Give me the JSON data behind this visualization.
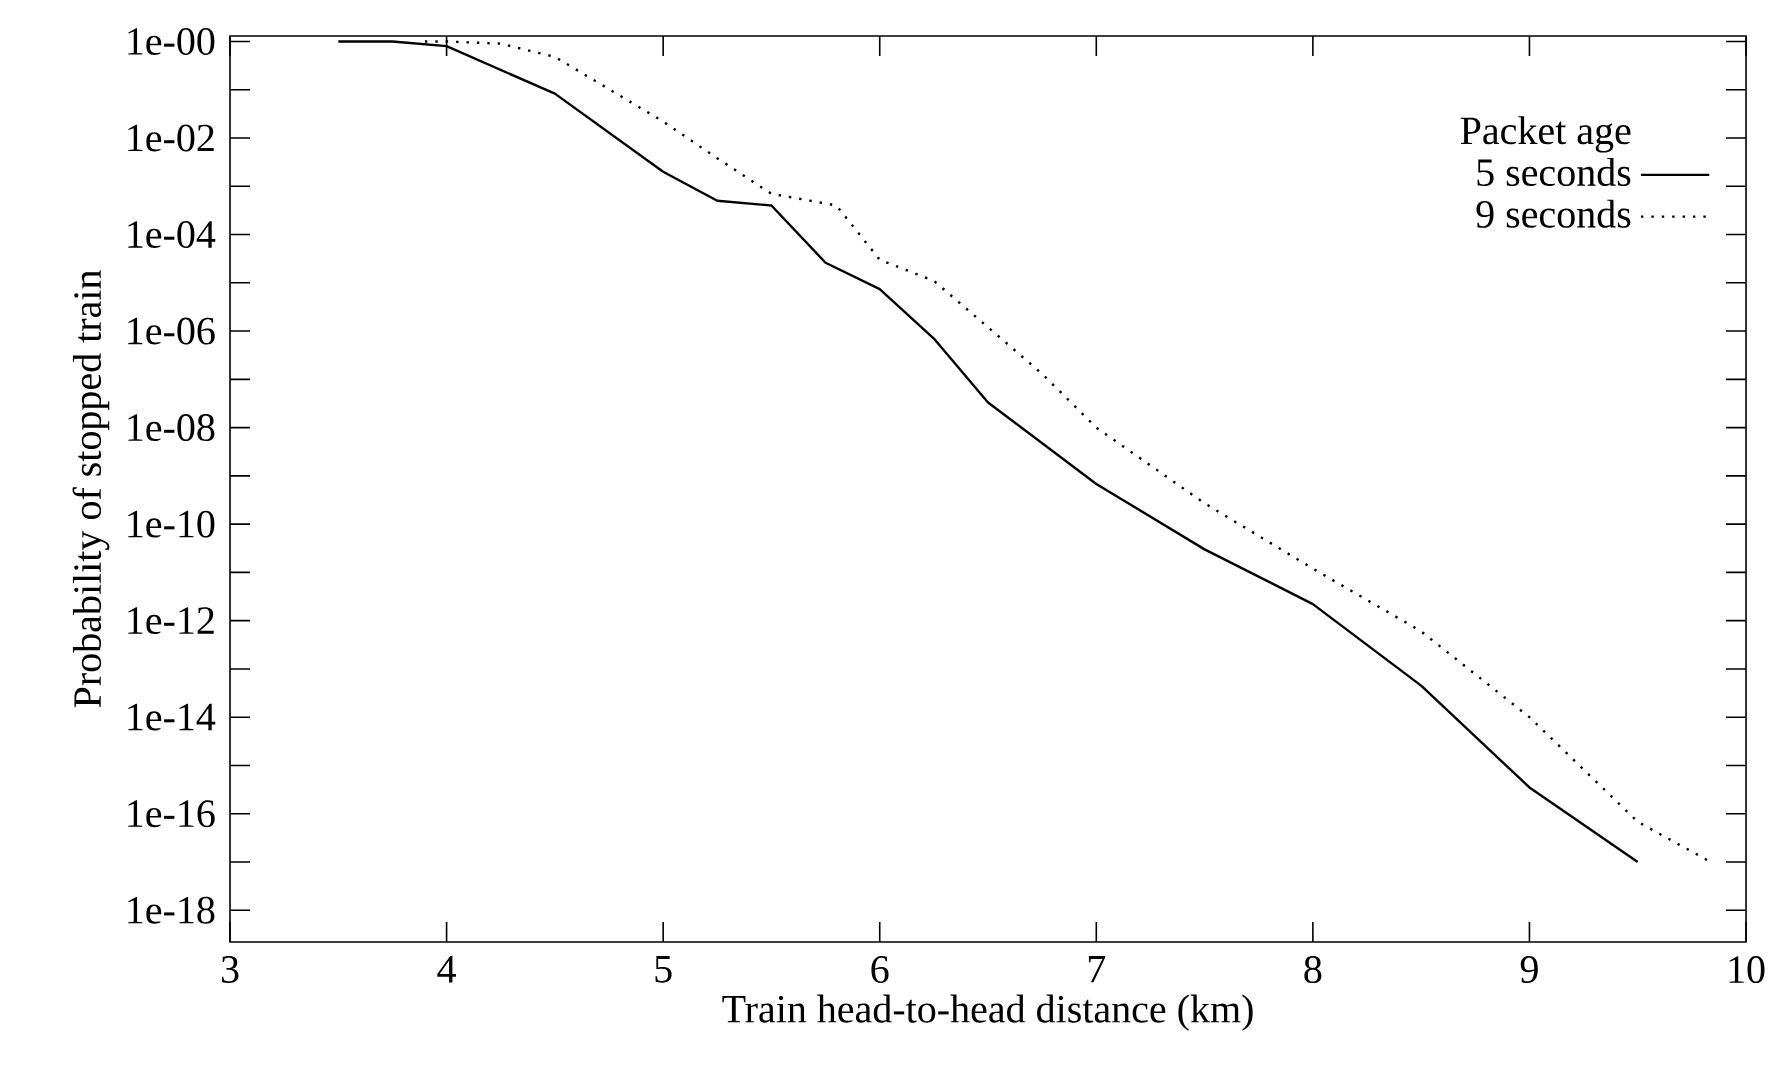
{
  "chart_data": {
    "type": "line",
    "xlabel": "Train head-to-head distance (km)",
    "ylabel": "Probability of stopped train",
    "legend_title": "Packet age",
    "legend": "top right",
    "log": "y",
    "grid": false,
    "marker": "none",
    "xlim": [
      3,
      10
    ],
    "xticks": [
      3,
      4,
      5,
      6,
      7,
      8,
      9,
      10
    ],
    "ylim": [
      2.2e-19,
      1.3
    ],
    "yticks": [
      {
        "value": 1,
        "label": "1e-00"
      },
      {
        "value": 0.1,
        "label": null
      },
      {
        "value": 0.01,
        "label": "1e-02"
      },
      {
        "value": 0.001,
        "label": null
      },
      {
        "value": 0.0001,
        "label": "1e-04"
      },
      {
        "value": 1e-05,
        "label": null
      },
      {
        "value": 1e-06,
        "label": "1e-06"
      },
      {
        "value": 1e-07,
        "label": null
      },
      {
        "value": 1e-08,
        "label": "1e-08"
      },
      {
        "value": 1e-09,
        "label": null
      },
      {
        "value": 1e-10,
        "label": "1e-10"
      },
      {
        "value": 1e-11,
        "label": null
      },
      {
        "value": 1e-12,
        "label": "1e-12"
      },
      {
        "value": 1e-13,
        "label": null
      },
      {
        "value": 1e-14,
        "label": "1e-14"
      },
      {
        "value": 1e-15,
        "label": null
      },
      {
        "value": 1e-16,
        "label": "1e-16"
      },
      {
        "value": 1e-17,
        "label": null
      },
      {
        "value": 1e-18,
        "label": "1e-18"
      }
    ],
    "series": [
      {
        "name": "5 seconds",
        "color": "#000000",
        "line_style": "solid",
        "x": [
          3.5,
          3.75,
          4.0,
          4.5,
          5.0,
          5.25,
          5.5,
          5.75,
          6.0,
          6.25,
          6.5,
          7.0,
          7.5,
          8.0,
          8.5,
          9.0,
          9.5
        ],
        "values": [
          1,
          1,
          0.8,
          0.083,
          0.002,
          0.0005,
          0.0004,
          2.6e-05,
          7.4e-06,
          7e-07,
          3.3e-08,
          6.8e-10,
          3e-11,
          2.2e-12,
          4.5e-14,
          3.5e-16,
          1e-17
        ]
      },
      {
        "name": "9 seconds",
        "color": "#000000",
        "line_style": "dotted",
        "x": [
          3.9,
          4.0,
          4.25,
          4.5,
          5.0,
          5.25,
          5.5,
          5.8,
          6.0,
          6.25,
          6.5,
          6.75,
          7.0,
          7.5,
          8.0,
          8.5,
          9.0,
          9.5,
          9.82
        ],
        "values": [
          1,
          1,
          0.9,
          0.48,
          0.022,
          0.0038,
          0.0007,
          0.0004,
          3e-05,
          1.1e-05,
          1.2e-06,
          1.3e-07,
          1e-08,
          2.7e-10,
          1.2e-11,
          6e-13,
          1e-14,
          6.8e-17,
          1.1e-17
        ]
      }
    ]
  }
}
